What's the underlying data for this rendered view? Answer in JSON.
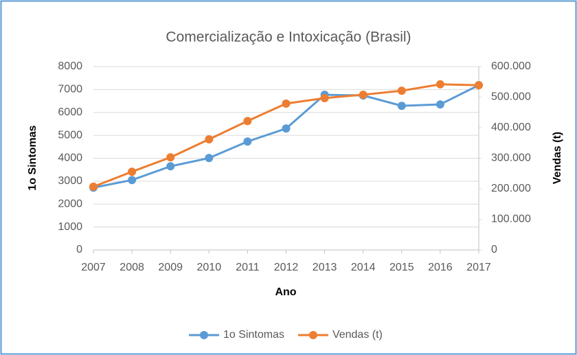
{
  "chart_data": {
    "type": "line",
    "title": "Comercialização e Intoxicação (Brasil)",
    "x_label": "Ano",
    "y_label": "1o Sintomas",
    "y2_label": "Vendas (t)",
    "x": [
      2007,
      2008,
      2009,
      2010,
      2011,
      2012,
      2013,
      2014,
      2015,
      2016,
      2017
    ],
    "xlim": [
      2007,
      2017
    ],
    "xticks": [
      2007,
      2008,
      2009,
      2010,
      2011,
      2012,
      2013,
      2014,
      2015,
      2016,
      2017
    ],
    "ylim": [
      0,
      8000
    ],
    "yticks": [
      0,
      1000,
      2000,
      3000,
      4000,
      5000,
      6000,
      7000,
      8000
    ],
    "y2lim": [
      0,
      600000
    ],
    "y2ticks": [
      0,
      {
        "value": 100000,
        "label": "100.000"
      },
      {
        "value": 200000,
        "label": "200.000"
      },
      {
        "value": 300000,
        "label": "300.000"
      },
      {
        "value": 400000,
        "label": "400.000"
      },
      {
        "value": 500000,
        "label": "500.000"
      },
      {
        "value": 600000,
        "label": "600.000"
      }
    ],
    "grid": true,
    "legend": "bottom",
    "series": [
      {
        "name": "1o Sintomas",
        "color": "#5b9bd5",
        "values": [
          2720,
          3050,
          3650,
          4010,
          4730,
          5300,
          6770,
          6740,
          6290,
          6350,
          7190
        ]
      },
      {
        "name": "Vendas (t)",
        "color": "#ed7d31",
        "axis": "y2",
        "values": [
          207000,
          256000,
          303000,
          362000,
          422000,
          479000,
          497000,
          508000,
          521000,
          542000,
          539000
        ]
      }
    ]
  }
}
